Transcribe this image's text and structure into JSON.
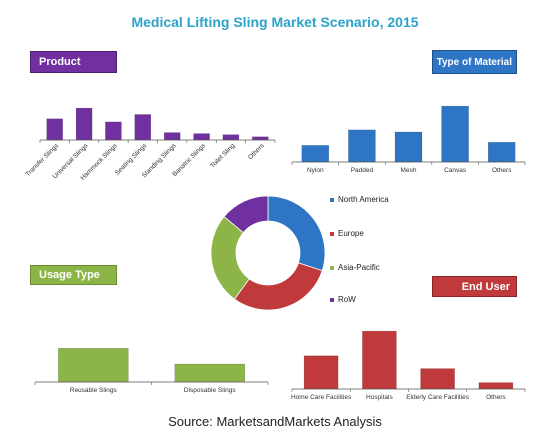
{
  "title": "Medical Lifting Sling Market Scenario, 2015",
  "source": "Source: MarketsandMarkets  Analysis",
  "labels": {
    "product": "Product",
    "material": "Type of Material",
    "usage": "Usage Type",
    "enduser": "End User"
  },
  "colors": {
    "product": "#7030a0",
    "material": "#2e75c6",
    "usage": "#8db446",
    "enduser": "#c0393b"
  },
  "chart_data": [
    {
      "id": "product",
      "type": "bar",
      "categories": [
        "Transfer Slings",
        "Universal Slings",
        "Hammock Slings",
        "Seating Slings",
        "Standing Slings",
        "Bariatric Slings",
        "Toilet Sling",
        "Others"
      ],
      "values": [
        20,
        30,
        17,
        24,
        7,
        6,
        5,
        3
      ],
      "ylim": [
        0,
        32
      ]
    },
    {
      "id": "material",
      "type": "bar",
      "categories": [
        "Nylon",
        "Padded",
        "Mesh",
        "Canvas",
        "Others"
      ],
      "values": [
        16,
        31,
        29,
        54,
        19
      ],
      "ylim": [
        0,
        56
      ]
    },
    {
      "id": "region",
      "type": "pie",
      "donut": true,
      "categories": [
        "North America",
        "Europe",
        "Asia-Pacific",
        "RoW"
      ],
      "values": [
        30,
        30,
        26,
        14
      ],
      "colors": [
        "#2e75c6",
        "#c0393b",
        "#8db446",
        "#7030a0"
      ],
      "legend": "right"
    },
    {
      "id": "usage",
      "type": "bar",
      "categories": [
        "Reusable Slings",
        "Disposable Slings"
      ],
      "values": [
        30,
        16
      ],
      "ylim": [
        0,
        32
      ]
    },
    {
      "id": "enduser",
      "type": "bar",
      "categories": [
        "Home Care Facilities",
        "Hospitals",
        "Elderly Care Facilities",
        "Others"
      ],
      "values": [
        31,
        54,
        19,
        6
      ],
      "ylim": [
        0,
        56
      ]
    }
  ]
}
